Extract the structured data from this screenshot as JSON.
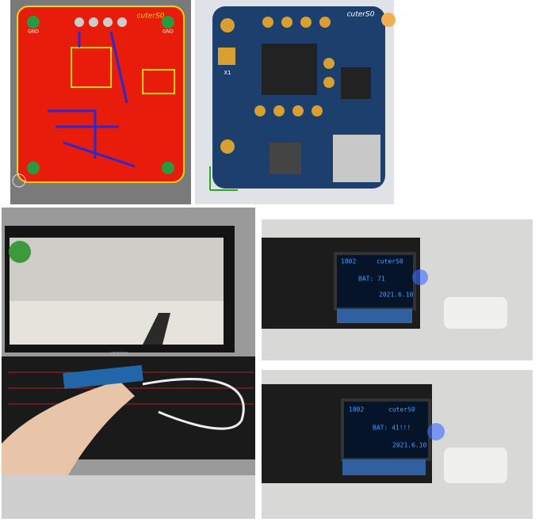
{
  "pcb_layout": {
    "label": "cuterS0",
    "pads": [
      "GND",
      "GND"
    ]
  },
  "pcb_render": {
    "label": "cuterS0",
    "part": "X1"
  },
  "laptop": {
    "brand": "LEGION"
  },
  "oled_top": {
    "lines": [
      "1802",
      "cuterS0",
      "BAT: 71",
      "2021.6.10"
    ]
  },
  "oled_bottom": {
    "lines": [
      "1802",
      "cuterS0",
      "BAT: 41!!!",
      "2021.6.10"
    ]
  }
}
